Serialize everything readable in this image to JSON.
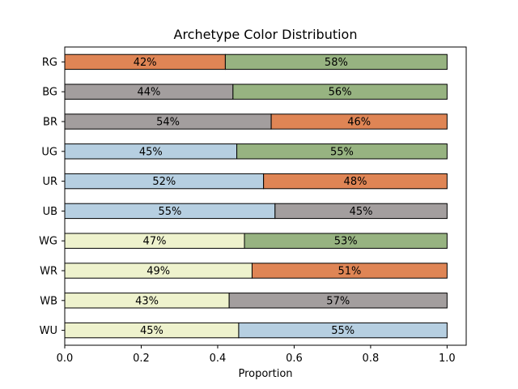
{
  "chart_data": {
    "type": "bar",
    "orientation": "horizontal",
    "stacked": true,
    "title": "Archetype Color Distribution",
    "xlabel": "Proportion",
    "ylabel": "",
    "xlim": [
      0,
      1.05
    ],
    "xticks": [
      "0.0",
      "0.2",
      "0.4",
      "0.6",
      "0.8",
      "1.0"
    ],
    "grid": false,
    "colors": {
      "W": "#eef2cd",
      "U": "#b6cfe1",
      "B": "#a39e9e",
      "R": "#df8555",
      "G": "#97b381"
    },
    "categories": [
      "RG",
      "BG",
      "BR",
      "UG",
      "UR",
      "UB",
      "WG",
      "WR",
      "WB",
      "WU"
    ],
    "segments": [
      [
        {
          "color": "R",
          "value": 0.42,
          "label": "42%"
        },
        {
          "color": "G",
          "value": 0.58,
          "label": "58%"
        }
      ],
      [
        {
          "color": "B",
          "value": 0.44,
          "label": "44%"
        },
        {
          "color": "G",
          "value": 0.56,
          "label": "56%"
        }
      ],
      [
        {
          "color": "B",
          "value": 0.54,
          "label": "54%"
        },
        {
          "color": "R",
          "value": 0.46,
          "label": "46%"
        }
      ],
      [
        {
          "color": "U",
          "value": 0.45,
          "label": "45%"
        },
        {
          "color": "G",
          "value": 0.55,
          "label": "55%"
        }
      ],
      [
        {
          "color": "U",
          "value": 0.52,
          "label": "52%"
        },
        {
          "color": "R",
          "value": 0.48,
          "label": "48%"
        }
      ],
      [
        {
          "color": "U",
          "value": 0.55,
          "label": "55%"
        },
        {
          "color": "B",
          "value": 0.45,
          "label": "45%"
        }
      ],
      [
        {
          "color": "W",
          "value": 0.47,
          "label": "47%"
        },
        {
          "color": "G",
          "value": 0.53,
          "label": "53%"
        }
      ],
      [
        {
          "color": "W",
          "value": 0.49,
          "label": "49%"
        },
        {
          "color": "R",
          "value": 0.51,
          "label": "51%"
        }
      ],
      [
        {
          "color": "W",
          "value": 0.43,
          "label": "43%"
        },
        {
          "color": "B",
          "value": 0.57,
          "label": "57%"
        }
      ],
      [
        {
          "color": "W",
          "value": 0.455,
          "label": "45%"
        },
        {
          "color": "U",
          "value": 0.545,
          "label": "55%"
        }
      ]
    ]
  }
}
